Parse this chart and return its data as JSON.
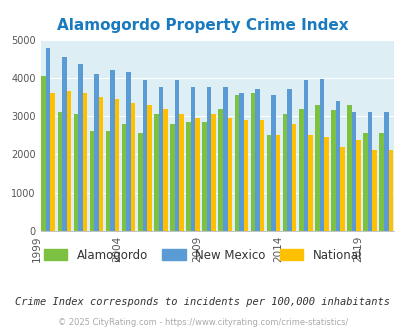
{
  "title": "Alamogordo Property Crime Index",
  "years": [
    1999,
    2000,
    2001,
    2002,
    2003,
    2004,
    2005,
    2006,
    2007,
    2008,
    2009,
    2010,
    2011,
    2012,
    2013,
    2014,
    2015,
    2016,
    2017,
    2018,
    2019,
    2020
  ],
  "alamogordo": [
    4050,
    3100,
    3050,
    2600,
    2600,
    2800,
    2550,
    3050,
    2800,
    2850,
    2850,
    3200,
    3550,
    3600,
    2500,
    3050,
    3200,
    3300,
    3150,
    3300,
    2550,
    2550
  ],
  "new_mexico": [
    4780,
    4550,
    4350,
    4100,
    4200,
    4150,
    3950,
    3750,
    3950,
    3750,
    3750,
    3750,
    3600,
    3700,
    3550,
    3700,
    3950,
    3980,
    3400,
    3120,
    3120,
    3100
  ],
  "national": [
    3600,
    3650,
    3600,
    3500,
    3450,
    3350,
    3300,
    3200,
    3050,
    2950,
    3050,
    2950,
    2900,
    2900,
    2500,
    2800,
    2500,
    2450,
    2200,
    2370,
    2120,
    2120
  ],
  "bar_colors": {
    "alamogordo": "#7dc142",
    "new_mexico": "#5b9bd5",
    "national": "#ffc000"
  },
  "bg_color": "#ddeef5",
  "ylim": [
    0,
    5000
  ],
  "yticks": [
    0,
    1000,
    2000,
    3000,
    4000,
    5000
  ],
  "xlabel_years": [
    1999,
    2004,
    2009,
    2014,
    2019
  ],
  "legend_labels": [
    "Alamogordo",
    "New Mexico",
    "National"
  ],
  "note": "Crime Index corresponds to incidents per 100,000 inhabitants",
  "footer": "© 2025 CityRating.com - https://www.cityrating.com/crime-statistics/"
}
